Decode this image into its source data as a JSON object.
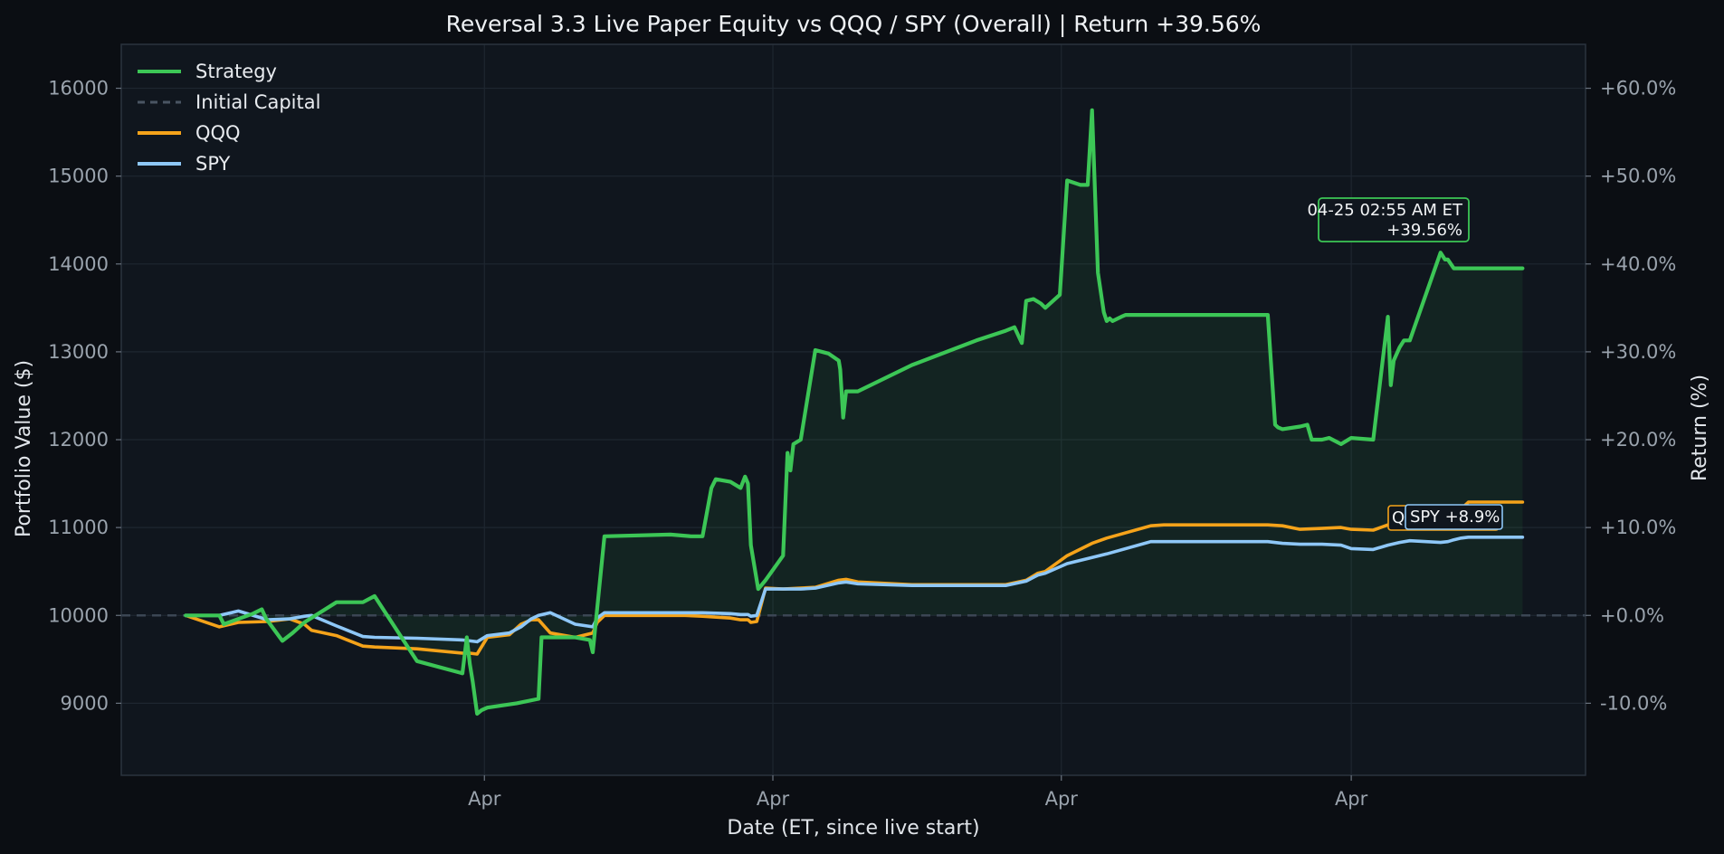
{
  "colors": {
    "background": "#0b0e13",
    "plot_background": "#10161e",
    "grid": "#1e2630",
    "strategy": "#3cc656",
    "strategy_fill": "#3cc656",
    "qqq": "#f5a31a",
    "spy": "#8ec7f7",
    "initial_capital": "#3b4654",
    "tick_text": "#9aa3ad",
    "label_text": "#e1e5ea"
  },
  "chart_data": {
    "type": "line",
    "title": "Reversal 3.3 Live Paper Equity vs QQQ / SPY (Overall)  |  Return +39.56%",
    "xlabel": "Date (ET, since live start)",
    "ylabel": "Portfolio Value ($)",
    "y2label": "Return (%)",
    "ylim": [
      8180,
      16500
    ],
    "y_ticks": [
      9000,
      10000,
      11000,
      12000,
      13000,
      14000,
      15000,
      16000
    ],
    "y_tick_labels": [
      "9000",
      "10000",
      "11000",
      "12000",
      "13000",
      "14000",
      "15000",
      "16000"
    ],
    "y2_ticks": [
      -10,
      0,
      10,
      20,
      30,
      40,
      50,
      60
    ],
    "y2_tick_labels": [
      "-10.0%",
      "+0.0%",
      "+10.0%",
      "+20.0%",
      "+30.0%",
      "+40.0%",
      "+50.0%",
      "+60.0%"
    ],
    "xlim": [
      0,
      100
    ],
    "x_ticks": [
      24.8,
      44.5,
      64.2,
      84.0
    ],
    "x_tick_labels": [
      "Apr",
      "Apr",
      "Apr",
      "Apr"
    ],
    "initial_capital": 10000,
    "grid": true,
    "legend_position": "top-left",
    "legend": [
      "Strategy",
      "Initial Capital",
      "QQQ",
      "SPY"
    ],
    "series": [
      {
        "name": "Strategy",
        "x": [
          4.4,
          6.7,
          7.0,
          9.0,
          9.6,
          9.9,
          11.0,
          11.7,
          12.5,
          14.7,
          16.5,
          17.3,
          20.2,
          23.3,
          23.6,
          23.8,
          24.0,
          24.3,
          24.6,
          25.0,
          27.0,
          28.5,
          28.7,
          29.1,
          29.3,
          29.6,
          31.0,
          32.0,
          32.2,
          33.0,
          37.5,
          38.9,
          39.7,
          40.3,
          40.6,
          41.6,
          42.3,
          42.6,
          42.8,
          43.0,
          43.5,
          44.0,
          45.2,
          45.5,
          45.7,
          45.9,
          46.4,
          47.4,
          48.3,
          49.0,
          49.1,
          49.3,
          49.5,
          50.3,
          54.0,
          58.4,
          60.4,
          61.0,
          61.5,
          61.8,
          62.3,
          62.8,
          63.1,
          64.1,
          64.6,
          65.5,
          66.0,
          66.3,
          66.7,
          67.1,
          67.3,
          67.5,
          67.7,
          68.3,
          68.6,
          69.3,
          70.0,
          70.3,
          70.6,
          70.9,
          71.5,
          71.8,
          72.5,
          78.3,
          78.8,
          79.0,
          79.3,
          80.5,
          81.0,
          81.3,
          82.0,
          82.5,
          83.3,
          84.0,
          85.5,
          86.5,
          86.7,
          86.9,
          87.3,
          87.6,
          88.0,
          90.1,
          90.4,
          90.6,
          91.0,
          91.5,
          92.0,
          95.7
        ],
        "values": [
          10000,
          10000,
          9900,
          10020,
          10070,
          9960,
          9710,
          9800,
          9920,
          10150,
          10150,
          10220,
          9480,
          9340,
          9750,
          9450,
          9250,
          8880,
          8920,
          8950,
          9000,
          9050,
          9750,
          9750,
          9750,
          9750,
          9750,
          9720,
          9580,
          10900,
          10920,
          10900,
          10900,
          11450,
          11550,
          11520,
          11450,
          11580,
          11500,
          10800,
          10300,
          10400,
          10680,
          11850,
          11650,
          11950,
          12000,
          13020,
          12980,
          12900,
          12800,
          12250,
          12550,
          12550,
          12850,
          13130,
          13240,
          13280,
          13100,
          13580,
          13600,
          13550,
          13500,
          13650,
          14950,
          14900,
          14900,
          15750,
          13900,
          13450,
          13350,
          13380,
          13350,
          13400,
          13420,
          13420,
          13420,
          13420,
          13420,
          13420,
          13420,
          13420,
          13420,
          13420,
          12170,
          12140,
          12120,
          12150,
          12170,
          12000,
          12000,
          12020,
          11950,
          12020,
          12000,
          13400,
          12620,
          12900,
          13050,
          13130,
          13130,
          14130,
          14050,
          14050,
          13950,
          13950,
          13950,
          13950
        ]
      },
      {
        "name": "QQQ",
        "x": [
          4.4,
          6.7,
          8.0,
          10.0,
          11.5,
          12.5,
          13.0,
          14.7,
          16.5,
          17.3,
          20.2,
          23.3,
          23.8,
          24.3,
          25.0,
          26.5,
          27.3,
          28.0,
          28.5,
          29.3,
          31.0,
          32.2,
          32.5,
          33.0,
          38.5,
          39.7,
          41.6,
          42.3,
          42.8,
          43.0,
          43.4,
          44.0,
          45.2,
          46.4,
          47.4,
          49.0,
          49.5,
          50.3,
          54.0,
          58.4,
          60.4,
          61.8,
          62.6,
          63.1,
          64.6,
          66.3,
          67.3,
          70.3,
          71.2,
          72.5,
          78.3,
          79.3,
          80.5,
          82.0,
          83.3,
          84.0,
          85.5,
          86.5,
          87.3,
          88.0,
          90.1,
          90.6,
          91.0,
          91.5,
          92.0,
          95.7
        ],
        "values": [
          10000,
          9870,
          9920,
          9930,
          9960,
          9900,
          9830,
          9770,
          9650,
          9640,
          9620,
          9570,
          9570,
          9560,
          9750,
          9780,
          9900,
          9950,
          9950,
          9800,
          9750,
          9800,
          9920,
          10000,
          10000,
          9990,
          9970,
          9950,
          9950,
          9920,
          9930,
          10310,
          10300,
          10310,
          10320,
          10400,
          10410,
          10380,
          10350,
          10350,
          10350,
          10400,
          10480,
          10500,
          10680,
          10820,
          10880,
          11020,
          11030,
          11030,
          11030,
          11020,
          10980,
          10990,
          11000,
          10980,
          10970,
          11030,
          11040,
          11050,
          11080,
          11130,
          11180,
          11210,
          11290,
          11290
        ]
      },
      {
        "name": "SPY",
        "x": [
          4.4,
          6.7,
          8.0,
          10.0,
          11.5,
          12.5,
          13.0,
          14.7,
          16.5,
          17.3,
          20.2,
          23.3,
          23.8,
          24.3,
          25.0,
          26.5,
          27.3,
          28.0,
          28.5,
          29.3,
          31.0,
          32.2,
          32.5,
          33.0,
          38.5,
          39.7,
          41.6,
          42.3,
          42.8,
          43.0,
          43.4,
          44.0,
          45.2,
          46.4,
          47.4,
          49.0,
          49.5,
          50.3,
          54.0,
          58.4,
          60.4,
          61.8,
          62.6,
          63.1,
          64.6,
          66.3,
          67.3,
          70.3,
          71.2,
          72.5,
          78.3,
          79.3,
          80.5,
          82.0,
          83.3,
          84.0,
          85.5,
          86.5,
          87.3,
          88.0,
          90.1,
          90.6,
          91.0,
          91.5,
          92.0,
          95.7
        ],
        "values": [
          10000,
          10000,
          10050,
          9950,
          9960,
          9990,
          10000,
          9880,
          9760,
          9750,
          9740,
          9720,
          9710,
          9700,
          9770,
          9800,
          9870,
          9960,
          10000,
          10030,
          9900,
          9870,
          9970,
          10030,
          10030,
          10030,
          10020,
          10010,
          10010,
          9990,
          10000,
          10300,
          10300,
          10300,
          10310,
          10370,
          10380,
          10360,
          10340,
          10340,
          10340,
          10390,
          10460,
          10480,
          10590,
          10660,
          10700,
          10840,
          10840,
          10840,
          10840,
          10820,
          10810,
          10810,
          10800,
          10760,
          10750,
          10800,
          10830,
          10850,
          10830,
          10840,
          10860,
          10880,
          10890,
          10890
        ]
      }
    ],
    "annotations": [
      {
        "name": "strategy-end",
        "lines": [
          "04-25 02:55 AM ET",
          "+39.56%"
        ],
        "color": "#3cc656"
      },
      {
        "name": "qqq-end",
        "text": "QQQ +12.9%",
        "color": "#f5a31a"
      },
      {
        "name": "spy-end",
        "text": "SPY +8.9%",
        "color": "#8ec7f7"
      }
    ]
  }
}
